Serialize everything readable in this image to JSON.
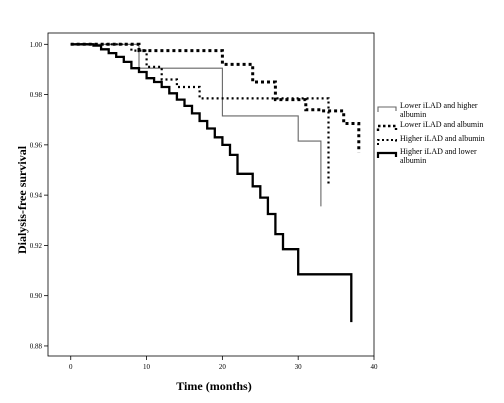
{
  "chart_data": {
    "type": "line",
    "title": "",
    "xlabel": "Time (months)",
    "ylabel": "Dialysis-free survival",
    "xlim": [
      -3,
      40
    ],
    "ylim": [
      0.876,
      1.0045
    ],
    "xticks": [
      "0",
      "10",
      "20",
      "30",
      "40"
    ],
    "yticks": [
      "0.88",
      "0.90",
      "0.92",
      "0.94",
      "0.96",
      "0.98",
      "1.00"
    ],
    "xtick_values": [
      0,
      10,
      20,
      30,
      40
    ],
    "ytick_values": [
      0.88,
      0.9,
      0.92,
      0.94,
      0.96,
      0.98,
      1.0
    ],
    "grid": false,
    "legend_position": "right",
    "series": [
      {
        "name": "Lower iLAD and higher albumin",
        "style": "thin-solid",
        "x": [
          0,
          9,
          9,
          20,
          20,
          30,
          30,
          33,
          33
        ],
        "y": [
          1.0,
          1.0,
          0.9905,
          0.9905,
          0.9715,
          0.9715,
          0.9615,
          0.9615,
          0.9355
        ]
      },
      {
        "name": "Lower iLAD and albumin",
        "style": "thick-dotted",
        "x": [
          0,
          9,
          9,
          20,
          20,
          24,
          24,
          27,
          27,
          31,
          31,
          33,
          33,
          36,
          36,
          38,
          38
        ],
        "y": [
          1.0,
          1.0,
          0.9975,
          0.9975,
          0.992,
          0.992,
          0.985,
          0.985,
          0.978,
          0.978,
          0.974,
          0.974,
          0.9735,
          0.9735,
          0.9685,
          0.9685,
          0.957
        ]
      },
      {
        "name": "Higher iLAD and albumin",
        "style": "medium-dotted",
        "x": [
          0,
          8,
          8,
          10,
          10,
          12,
          12,
          14,
          14,
          17,
          17,
          34,
          34
        ],
        "y": [
          1.0,
          1.0,
          0.9975,
          0.9975,
          0.991,
          0.991,
          0.986,
          0.986,
          0.983,
          0.983,
          0.9785,
          0.9785,
          0.9445
        ]
      },
      {
        "name": "Higher iLAD and lower albumin",
        "style": "thick-solid",
        "x": [
          0,
          3,
          3,
          4,
          4,
          5,
          5,
          6,
          6,
          7,
          7,
          8,
          8,
          9,
          9,
          10,
          10,
          11,
          11,
          12,
          12,
          13,
          13,
          14,
          14,
          15,
          15,
          16,
          16,
          17,
          17,
          18,
          18,
          19,
          19,
          20,
          20,
          21,
          21,
          22,
          22,
          24,
          24,
          25,
          25,
          26,
          26,
          27,
          27,
          28,
          28,
          30,
          30,
          37,
          37
        ],
        "y": [
          1.0,
          1.0,
          0.9995,
          0.9995,
          0.998,
          0.998,
          0.9965,
          0.9965,
          0.995,
          0.995,
          0.993,
          0.993,
          0.9905,
          0.9905,
          0.989,
          0.989,
          0.9865,
          0.9865,
          0.985,
          0.985,
          0.983,
          0.983,
          0.9805,
          0.9805,
          0.978,
          0.978,
          0.9755,
          0.9755,
          0.9725,
          0.9725,
          0.9695,
          0.9695,
          0.9665,
          0.9665,
          0.963,
          0.963,
          0.96,
          0.96,
          0.956,
          0.956,
          0.9485,
          0.9485,
          0.9435,
          0.9435,
          0.939,
          0.939,
          0.9325,
          0.9325,
          0.9245,
          0.9245,
          0.9185,
          0.9185,
          0.9085,
          0.9085,
          0.8895
        ]
      }
    ]
  }
}
